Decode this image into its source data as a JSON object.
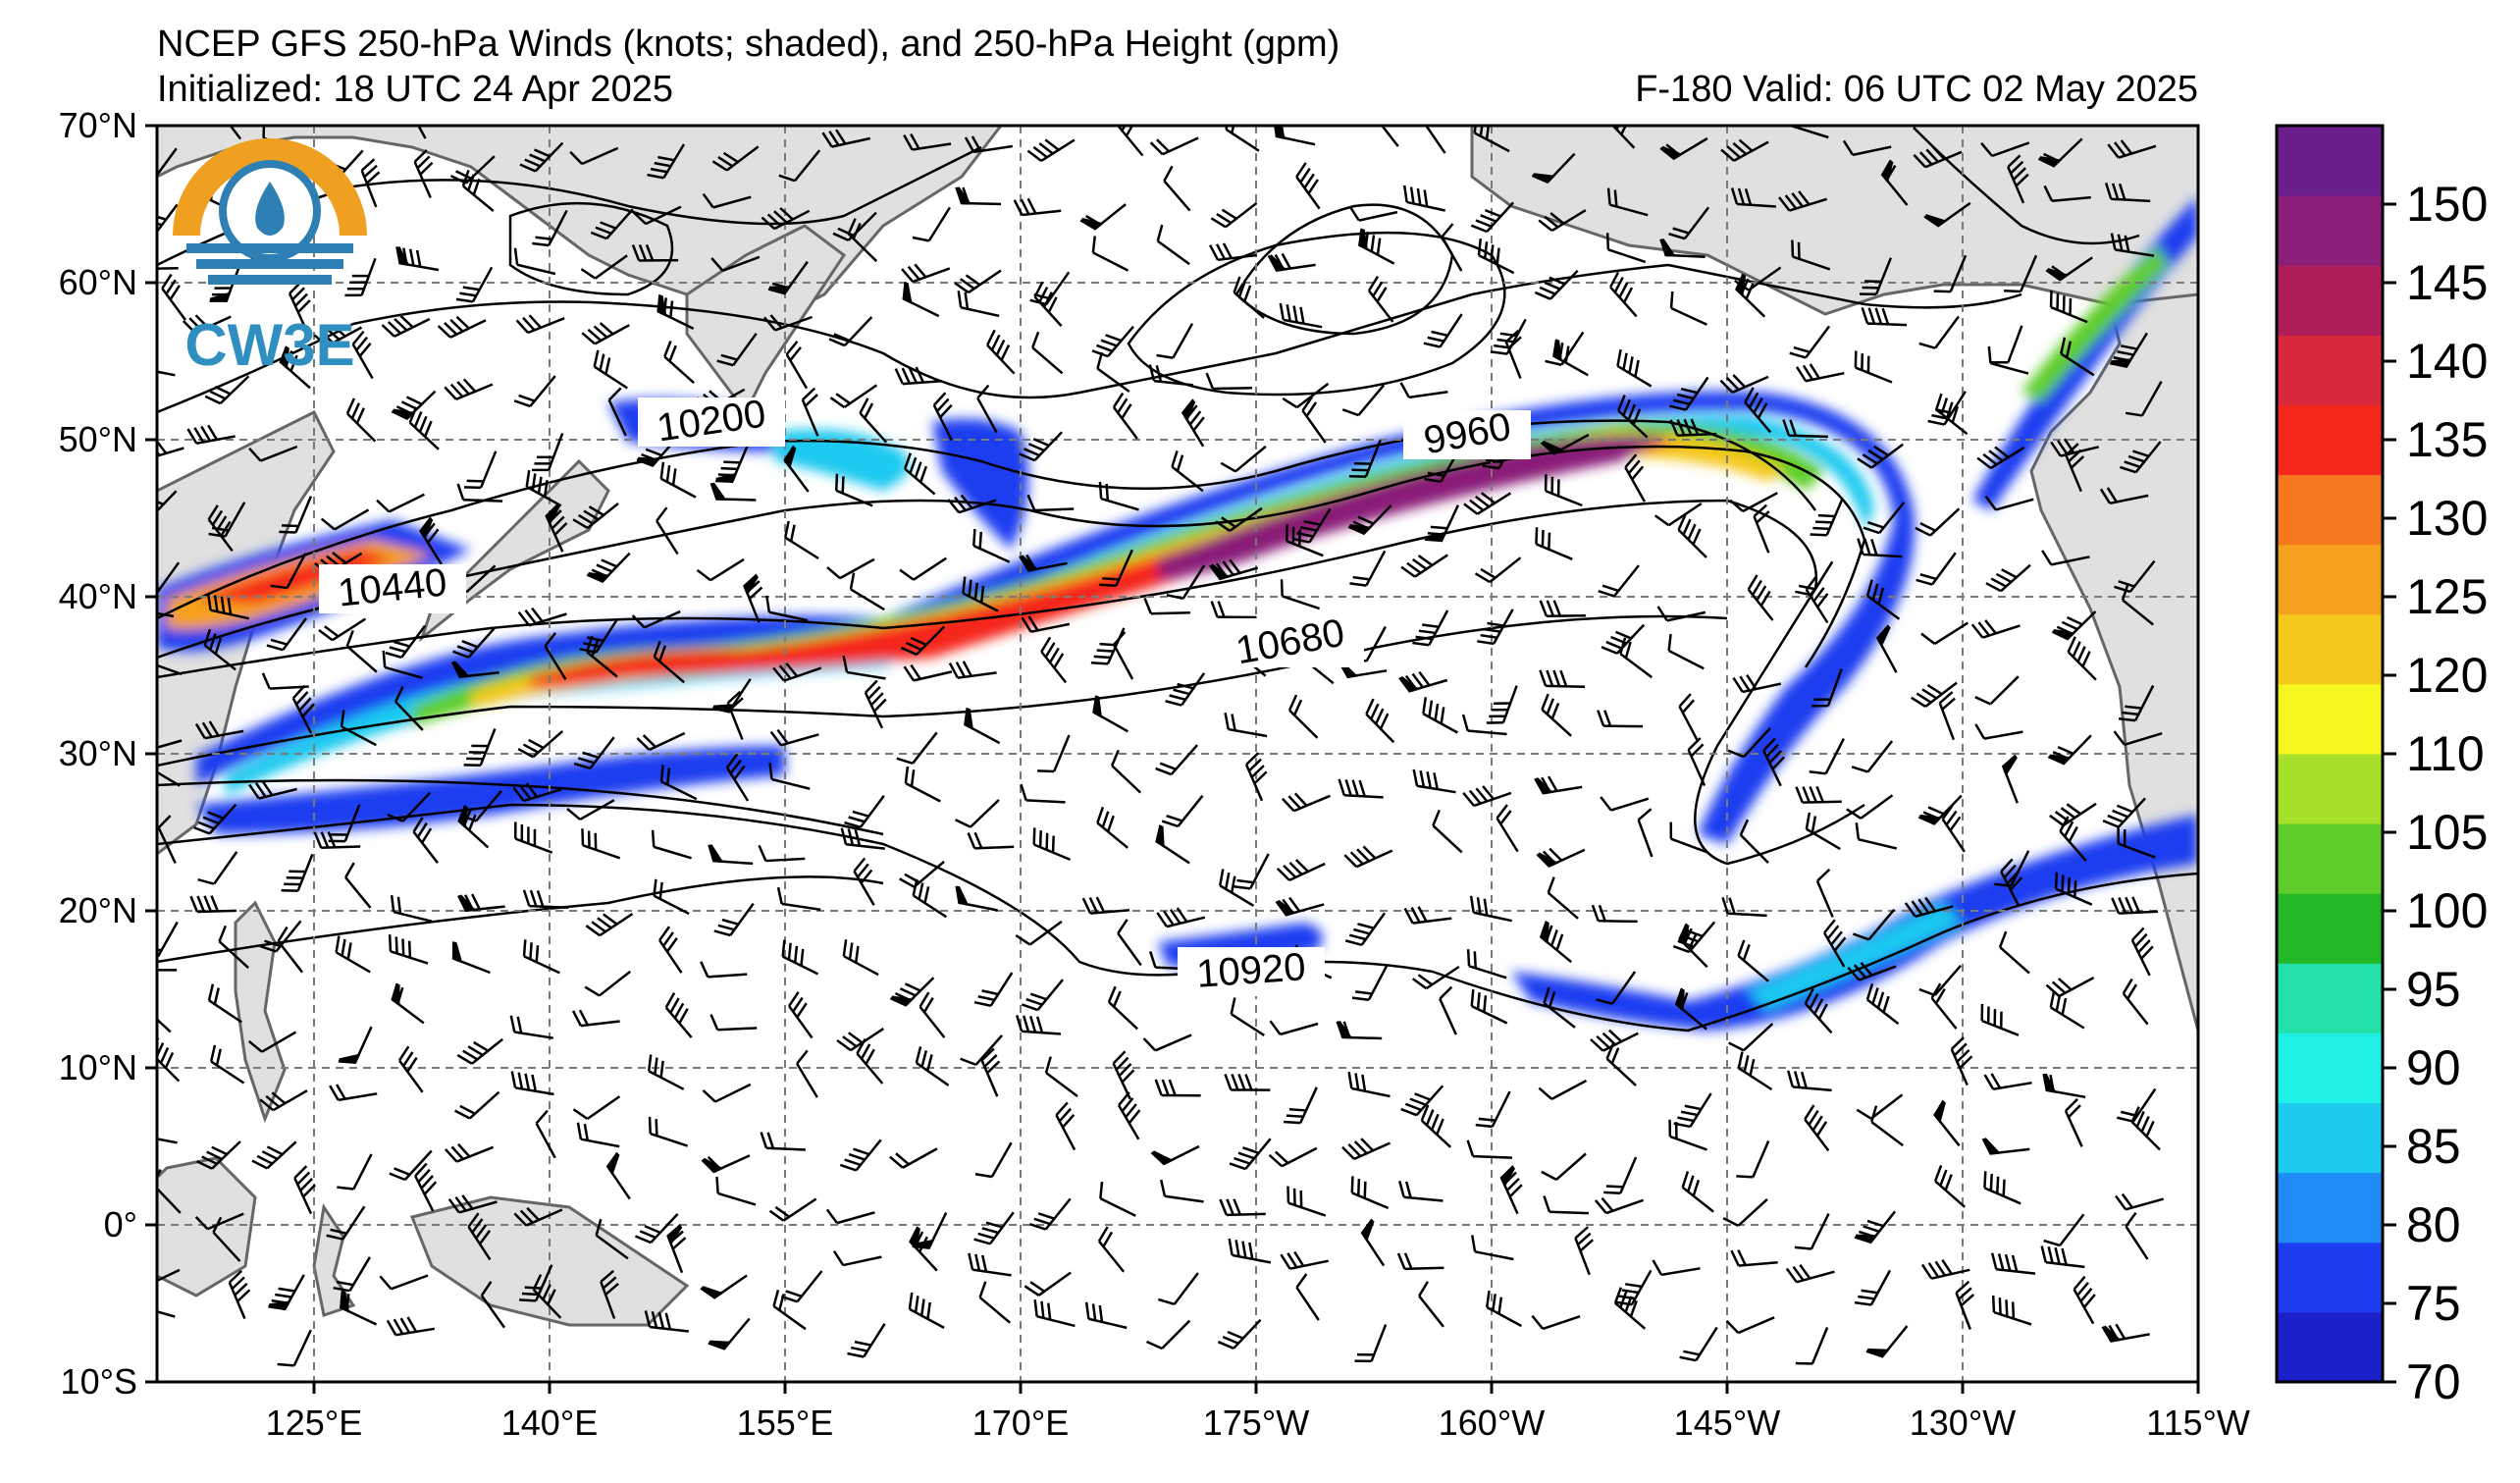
{
  "title": {
    "line1": "NCEP GFS 250-hPa Winds (knots; shaded), and 250-hPa Height (gpm)",
    "line2_left": "Initialized: 18 UTC 24 Apr 2025",
    "line2_right": "F-180  Valid: 06 UTC 02 May 2025"
  },
  "logo": {
    "text": "CW3E",
    "icon": "cw3e-logo-icon"
  },
  "map": {
    "projection": "equirectangular",
    "lon_range": [
      "110°E",
      "115°W"
    ],
    "lat_range": [
      "10°S",
      "70°N"
    ],
    "gridlines": true,
    "lat_ticks": [
      "70°N",
      "60°N",
      "50°N",
      "40°N",
      "30°N",
      "20°N",
      "10°N",
      "0°",
      "10°S"
    ],
    "lon_ticks": [
      "125°E",
      "140°E",
      "155°E",
      "170°E",
      "175°W",
      "160°W",
      "145°W",
      "130°W",
      "115°W"
    ],
    "contour_labels": [
      "10200",
      "9960",
      "10440",
      "10680",
      "10920"
    ]
  },
  "colorbar": {
    "units": "knots",
    "tick_labels": [
      "70",
      "75",
      "80",
      "85",
      "90",
      "95",
      "100",
      "105",
      "110",
      "120",
      "125",
      "130",
      "135",
      "140",
      "145",
      "150"
    ],
    "colors": [
      "#1a1fc8",
      "#1d3cf0",
      "#1f8cf5",
      "#1ec9f0",
      "#1ef0e6",
      "#22e0a8",
      "#22b828",
      "#5ecd2a",
      "#a6e02a",
      "#f5f520",
      "#f5c81e",
      "#f5a01e",
      "#f5781e",
      "#f5281e",
      "#d8283c",
      "#b01e5a",
      "#8a1e78",
      "#6a1e8c"
    ]
  }
}
